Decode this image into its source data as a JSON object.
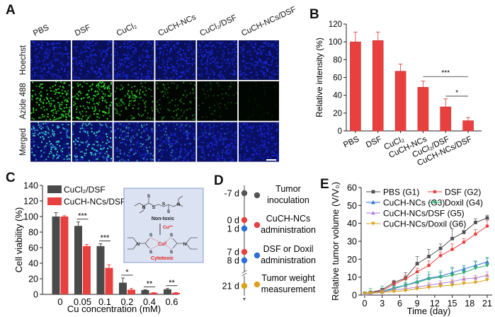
{
  "panel_labels": {
    "a": "A",
    "b": "B",
    "c": "C",
    "d": "D",
    "e": "E"
  },
  "colors": {
    "red": "#e8403f",
    "gray": "#4a4a4a",
    "hoechst_blue": "#1a2be0",
    "azide_green": "#2fd42a",
    "merged_cyan": "#3ad6d0",
    "inset_bg": "#dbe3f3",
    "inset_border": "#6f86c6",
    "e_series": [
      "#505050",
      "#e8403f",
      "#2b6fd6",
      "#2fb070",
      "#b27fe6",
      "#d9a21a"
    ]
  },
  "panel_a": {
    "columns": [
      "PBS",
      "DSF",
      "CuCl₂",
      "CuCH-NCs",
      "CuCl₂/DSF",
      "CuCH-NCs/DSF"
    ],
    "rows": [
      "Hoechst",
      "Azide 488",
      "Merged"
    ],
    "green_intensity": [
      1.0,
      1.0,
      0.7,
      0.5,
      0.28,
      0.1
    ],
    "scale_bar": true
  },
  "chart_data": [
    {
      "panel": "B",
      "type": "bar",
      "title": "",
      "xlabel": "",
      "ylabel": "Relative intensity (%)",
      "ylim": [
        0,
        120
      ],
      "yticks": [
        0,
        20,
        40,
        60,
        80,
        100,
        120
      ],
      "categories": [
        "PBS",
        "DSF",
        "CuCl₂",
        "CuCH-NCs",
        "CuCl₂/DSF",
        "CuCH-NCs/DSF"
      ],
      "values": [
        100,
        101.5,
        67,
        49,
        27,
        11.5
      ],
      "errors": [
        11,
        9.5,
        8,
        7,
        9,
        3.5
      ],
      "significance": [
        {
          "from": 3,
          "to": 5,
          "label": "***",
          "y": 61
        },
        {
          "from": 4,
          "to": 5,
          "label": "*",
          "y": 39
        }
      ]
    },
    {
      "panel": "C",
      "type": "bar",
      "title": "",
      "xlabel": "Cu concentration (mM)",
      "ylabel": "Cell viability (%)",
      "ylim": [
        0,
        140
      ],
      "yticks": [
        0,
        20,
        40,
        60,
        80,
        100,
        120,
        140
      ],
      "categories": [
        "0",
        "0.05",
        "0.1",
        "0.2",
        "0.4",
        "0.6"
      ],
      "legend_position": "top-left",
      "series": [
        {
          "name": "CuCl₂/DSF",
          "values": [
            100,
            88,
            62,
            15,
            5.5,
            6.5
          ],
          "errors": [
            5,
            5,
            3,
            6,
            0.5,
            1
          ]
        },
        {
          "name": "CuCH-NCs/DSF",
          "values": [
            100,
            62,
            34,
            6,
            2,
            2
          ],
          "errors": [
            1,
            2,
            4,
            1.5,
            0.3,
            0.3
          ]
        }
      ],
      "significance": [
        "",
        "***",
        "***",
        "*",
        "**",
        "**"
      ],
      "inset": {
        "top_label": "Non-toxic",
        "arrow_label": "Cu²⁺",
        "bottom_label": "Cytotoxic",
        "metal_label": "Cuᴵᴵ"
      }
    },
    {
      "panel": "E",
      "type": "line",
      "title": "",
      "xlabel": "Time (day)",
      "ylabel": "Relative tumor volume (V/V₀)",
      "xlim": [
        0,
        21
      ],
      "ylim": [
        0,
        60
      ],
      "xticks": [
        0,
        3,
        6,
        9,
        12,
        15,
        18,
        21
      ],
      "yticks": [
        0,
        10,
        20,
        30,
        40,
        50,
        60
      ],
      "x": [
        0,
        1,
        3,
        5,
        7,
        9,
        11,
        13,
        15,
        17,
        19,
        21
      ],
      "legend_position": "top-left",
      "series": [
        {
          "name": "PBS (G1)",
          "marker": "square",
          "values": [
            1,
            1.5,
            3,
            7,
            9.5,
            17.5,
            21.5,
            26,
            31.5,
            35,
            40.5,
            43
          ],
          "errors": [
            0.3,
            0.5,
            0.8,
            1.2,
            3,
            4,
            4,
            2.5,
            5.5,
            1.2,
            2,
            1.5
          ]
        },
        {
          "name": "DSF (G2)",
          "marker": "circle",
          "values": [
            1,
            1.5,
            2.5,
            6,
            9,
            13,
            16.5,
            22,
            25.5,
            29.5,
            34,
            38.5
          ],
          "errors": [
            0.3,
            0.5,
            0.8,
            1.5,
            2,
            2,
            2.5,
            2,
            3,
            2,
            2.5,
            3
          ]
        },
        {
          "name": "CuCH-NCs (G3)",
          "marker": "triangle-up",
          "values": [
            1,
            1.2,
            2,
            4,
            5.5,
            7.5,
            9.5,
            10.5,
            12.5,
            14.5,
            16.5,
            18.5
          ],
          "errors": [
            0.3,
            0.5,
            1,
            1,
            1.5,
            2,
            2,
            2,
            2.5,
            2,
            2.5,
            2
          ]
        },
        {
          "name": "Doxil (G4)",
          "marker": "triangle-down",
          "values": [
            1,
            1.2,
            2,
            3.5,
            5.5,
            7,
            9,
            10,
            11,
            12.5,
            15,
            16.5
          ],
          "errors": [
            0.5,
            2.5,
            3,
            2,
            3,
            4,
            4,
            3.5,
            4.5,
            3,
            3.5,
            4.5
          ]
        },
        {
          "name": "CuCH-NCs/DSF (G5)",
          "marker": "triangle-up",
          "values": [
            0.8,
            1,
            1.8,
            2.8,
            3.5,
            4.5,
            5.5,
            6.5,
            7.5,
            9,
            9.5,
            11
          ],
          "errors": [
            0.3,
            0.5,
            1,
            1,
            1.5,
            1.5,
            1.5,
            1.5,
            1.5,
            1.5,
            1.5,
            2
          ]
        },
        {
          "name": "CuCH-NCs/Doxil (G6)",
          "marker": "triangle-down",
          "values": [
            0.8,
            1,
            1.5,
            2,
            2.5,
            3.5,
            4.2,
            5,
            5.5,
            6.5,
            7,
            8.5
          ],
          "errors": [
            0.3,
            0.5,
            1,
            1,
            1.5,
            1.5,
            2,
            2,
            2.5,
            3,
            3,
            3
          ]
        }
      ]
    }
  ],
  "panel_d": {
    "events": [
      {
        "label": "-7 d",
        "color": "#555555"
      },
      {
        "label": "0 d",
        "color": "#e8403f"
      },
      {
        "label": "1 d",
        "color": "#2b6fd6"
      },
      {
        "label": "7 d",
        "color": "#e8403f"
      },
      {
        "label": "8 d",
        "color": "#2b6fd6"
      },
      {
        "label": "21 d",
        "color": "#d9a21a"
      }
    ],
    "legend": [
      {
        "lines": [
          "Tumor",
          "inoculation"
        ],
        "color": "#555555"
      },
      {
        "lines": [
          "CuCH-NCs",
          "administration"
        ],
        "color": "#e8403f"
      },
      {
        "lines": [
          "DSF or Doxil",
          "administration"
        ],
        "color": "#2b6fd6"
      },
      {
        "lines": [
          "Tumor weight",
          "measurement"
        ],
        "color": "#d9a21a"
      }
    ]
  }
}
